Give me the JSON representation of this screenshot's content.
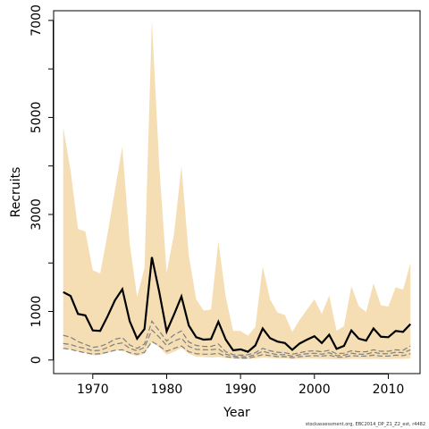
{
  "chart_data": {
    "type": "line",
    "xlabel": "Year",
    "ylabel": "Recruits",
    "xlim": [
      1964.7,
      2014.3
    ],
    "ylim": [
      -280,
      7200
    ],
    "x_ticks": [
      1970,
      1980,
      1990,
      2000,
      2010
    ],
    "x_tick_labels": [
      "1970",
      "1980",
      "1990",
      "2000",
      "2010"
    ],
    "y_ticks": [
      0,
      1000,
      3000,
      5000,
      7000
    ],
    "y_tick_labels": [
      "0",
      "1000",
      "3000",
      "5000",
      "7000"
    ],
    "y_minor_ticks": [
      2000,
      4000,
      6000
    ],
    "grid": false,
    "legend": null,
    "x": [
      1966,
      1967,
      1968,
      1969,
      1970,
      1971,
      1972,
      1973,
      1974,
      1975,
      1976,
      1977,
      1978,
      1979,
      1980,
      1981,
      1982,
      1983,
      1984,
      1985,
      1986,
      1987,
      1988,
      1989,
      1990,
      1991,
      1992,
      1993,
      1994,
      1995,
      1996,
      1997,
      1998,
      1999,
      2000,
      2001,
      2002,
      2003,
      2004,
      2005,
      2006,
      2007,
      2008,
      2009,
      2010,
      2011,
      2012,
      2013
    ],
    "series": [
      {
        "role": "upper-bound",
        "style": "band-top",
        "values": [
          4800,
          3900,
          2700,
          2650,
          1850,
          1780,
          2600,
          3500,
          4400,
          2400,
          1300,
          1900,
          7000,
          4000,
          1800,
          2600,
          4000,
          2150,
          1250,
          1020,
          1040,
          2450,
          1300,
          600,
          600,
          500,
          680,
          1930,
          1250,
          980,
          930,
          580,
          830,
          1040,
          1250,
          950,
          1330,
          600,
          700,
          1520,
          1110,
          990,
          1580,
          1130,
          1100,
          1500,
          1450,
          2000
        ]
      },
      {
        "role": "lower-bound",
        "style": "band-bottom",
        "values": [
          250,
          220,
          180,
          150,
          100,
          100,
          150,
          200,
          210,
          120,
          80,
          130,
          380,
          260,
          110,
          170,
          250,
          130,
          70,
          60,
          50,
          60,
          40,
          30,
          20,
          20,
          30,
          50,
          40,
          30,
          30,
          20,
          25,
          30,
          30,
          25,
          20,
          15,
          15,
          25,
          25,
          20,
          25,
          20,
          20,
          25,
          25,
          30
        ]
      },
      {
        "role": "median",
        "style": "solid-black",
        "values": [
          1400,
          1320,
          950,
          920,
          610,
          600,
          900,
          1230,
          1460,
          800,
          440,
          640,
          2120,
          1400,
          590,
          940,
          1310,
          710,
          470,
          420,
          430,
          790,
          420,
          200,
          220,
          170,
          300,
          650,
          450,
          380,
          350,
          210,
          340,
          420,
          490,
          350,
          520,
          230,
          290,
          610,
          440,
          400,
          650,
          480,
          470,
          600,
          580,
          740
        ]
      },
      {
        "role": "upper-dashed",
        "style": "dashed-grey",
        "values": [
          510,
          470,
          380,
          320,
          260,
          280,
          340,
          430,
          460,
          310,
          240,
          330,
          800,
          600,
          390,
          520,
          600,
          370,
          300,
          280,
          280,
          330,
          170,
          110,
          100,
          110,
          150,
          240,
          190,
          160,
          150,
          120,
          150,
          180,
          190,
          170,
          200,
          130,
          140,
          190,
          170,
          170,
          210,
          180,
          180,
          210,
          200,
          290
        ]
      },
      {
        "role": "lower-dashed",
        "style": "dashed-grey",
        "values": [
          340,
          320,
          270,
          240,
          190,
          200,
          260,
          330,
          350,
          240,
          190,
          260,
          620,
          470,
          300,
          390,
          450,
          280,
          220,
          210,
          210,
          230,
          120,
          80,
          70,
          70,
          110,
          180,
          140,
          110,
          110,
          80,
          110,
          130,
          140,
          120,
          150,
          90,
          100,
          140,
          120,
          120,
          160,
          130,
          130,
          160,
          150,
          210
        ]
      },
      {
        "role": "lowest-dashed",
        "style": "dashed-grey",
        "values": [
          240,
          220,
          180,
          150,
          120,
          130,
          160,
          200,
          210,
          150,
          120,
          160,
          380,
          290,
          180,
          240,
          290,
          170,
          130,
          120,
          120,
          140,
          70,
          50,
          40,
          40,
          70,
          110,
          90,
          70,
          70,
          50,
          70,
          80,
          90,
          80,
          100,
          60,
          60,
          90,
          80,
          80,
          100,
          80,
          80,
          100,
          90,
          130
        ]
      }
    ],
    "colors": {
      "band": "#f5deb3",
      "median": "#000000",
      "dashed": "#7f7f7f",
      "axis": "#000000"
    }
  },
  "footer": {
    "credit": "stockassessment.org, EBC2014_DP_Z1_Z2_est, r4482"
  }
}
